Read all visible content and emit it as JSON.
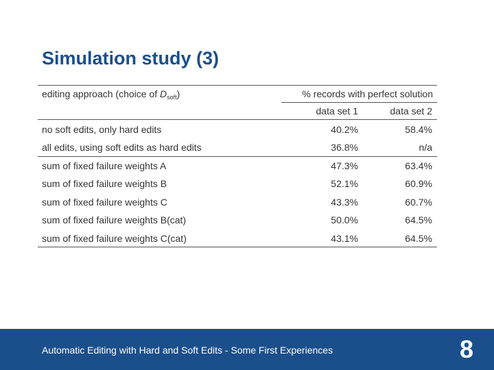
{
  "title": "Simulation study (3)",
  "table": {
    "header": {
      "col0_text": "editing approach (choice of ",
      "col0_var": "D",
      "col0_sub": "soft",
      "col0_end": ")",
      "span_label": "% records with perfect solution",
      "col1": "data set 1",
      "col2": "data set 2"
    },
    "rows": [
      {
        "label": "no soft edits, only hard edits",
        "ds1": "40.2%",
        "ds2": "58.4%"
      },
      {
        "label": "all edits, using soft edits as hard edits",
        "ds1": "36.8%",
        "ds2": "n/a"
      },
      {
        "label": "sum of fixed failure weights A",
        "ds1": "47.3%",
        "ds2": "63.4%"
      },
      {
        "label": "sum of fixed failure weights B",
        "ds1": "52.1%",
        "ds2": "60.9%"
      },
      {
        "label": "sum of fixed failure weights C",
        "ds1": "43.3%",
        "ds2": "60.7%"
      },
      {
        "label": "sum of fixed failure weights B(cat)",
        "ds1": "50.0%",
        "ds2": "64.5%"
      },
      {
        "label": "sum of fixed failure weights C(cat)",
        "ds1": "43.1%",
        "ds2": "64.5%"
      }
    ]
  },
  "footer": {
    "text": "Automatic Editing with Hard and Soft Edits - Some First Experiences",
    "page": "8"
  },
  "colors": {
    "accent": "#1a4f8c"
  }
}
